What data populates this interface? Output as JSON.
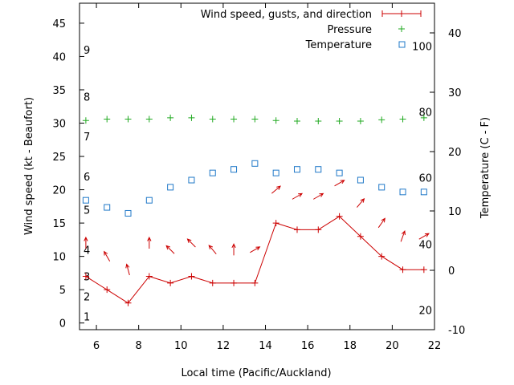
{
  "chart_data": {
    "type": "line",
    "xlabel": "Local time (Pacific/Auckland)",
    "ylabel": "Wind speed (kt - Beaufort)",
    "y2label": "Temperature (C - F)",
    "xlim": [
      5.2,
      22.0
    ],
    "ylim": [
      -1,
      48
    ],
    "y2lim": [
      -10,
      45
    ],
    "x_ticks": [
      6,
      8,
      10,
      12,
      14,
      16,
      18,
      20,
      22
    ],
    "y_ticks": [
      0,
      5,
      10,
      15,
      20,
      25,
      30,
      35,
      40,
      45
    ],
    "y2_ticks": [
      -10,
      0,
      10,
      20,
      30,
      40
    ],
    "beaufort_labels": [
      {
        "label": "1",
        "kt": 1
      },
      {
        "label": "2",
        "kt": 4
      },
      {
        "label": "3",
        "kt": 7
      },
      {
        "label": "4",
        "kt": 11
      },
      {
        "label": "5",
        "kt": 17
      },
      {
        "label": "6",
        "kt": 22
      },
      {
        "label": "7",
        "kt": 28
      },
      {
        "label": "8",
        "kt": 34
      },
      {
        "label": "9",
        "kt": 41
      }
    ],
    "fahrenheit_labels": [
      {
        "label": "20",
        "c": -6.7
      },
      {
        "label": "40",
        "c": 4.4
      },
      {
        "label": "60",
        "c": 15.6
      },
      {
        "label": "80",
        "c": 26.7
      },
      {
        "label": "100",
        "c": 37.8
      }
    ],
    "legend_position": "top-right",
    "colors": {
      "wind": "#cc0000",
      "pressure": "#22aa22",
      "temperature": "#1f78c8"
    },
    "series": [
      {
        "name": "Wind speed, gusts, and direction",
        "x": [
          5.5,
          6.5,
          7.5,
          8.5,
          9.5,
          10.5,
          11.5,
          12.5,
          13.5,
          14.5,
          15.5,
          16.5,
          17.5,
          18.5,
          19.5,
          20.5,
          21.5
        ],
        "values": [
          7,
          5,
          3,
          7,
          6,
          7,
          6,
          6,
          6,
          15,
          14,
          14,
          16,
          13,
          10,
          8,
          8
        ],
        "direction_deg": [
          180,
          150,
          165,
          180,
          135,
          135,
          140,
          180,
          240,
          230,
          240,
          240,
          240,
          220,
          215,
          200,
          240
        ]
      },
      {
        "name": "Pressure",
        "x": [
          5.5,
          6.5,
          7.5,
          8.5,
          9.5,
          10.5,
          11.5,
          12.5,
          13.5,
          14.5,
          15.5,
          16.5,
          17.5,
          18.5,
          19.5,
          20.5,
          21.5
        ],
        "values": [
          30.4,
          30.6,
          30.6,
          30.6,
          30.8,
          30.8,
          30.6,
          30.6,
          30.6,
          30.4,
          30.3,
          30.3,
          30.3,
          30.3,
          30.5,
          30.6,
          30.8
        ]
      },
      {
        "name": "Temperature",
        "x": [
          5.5,
          6.5,
          7.5,
          8.5,
          9.5,
          10.5,
          11.5,
          12.5,
          13.5,
          14.5,
          15.5,
          16.5,
          17.5,
          18.5,
          19.5,
          20.5,
          21.5
        ],
        "values": [
          11.8,
          10.6,
          9.6,
          11.8,
          14.0,
          15.2,
          16.4,
          17.0,
          18.0,
          16.4,
          17.0,
          17.0,
          16.4,
          15.2,
          14.0,
          13.2,
          13.2
        ]
      }
    ]
  }
}
